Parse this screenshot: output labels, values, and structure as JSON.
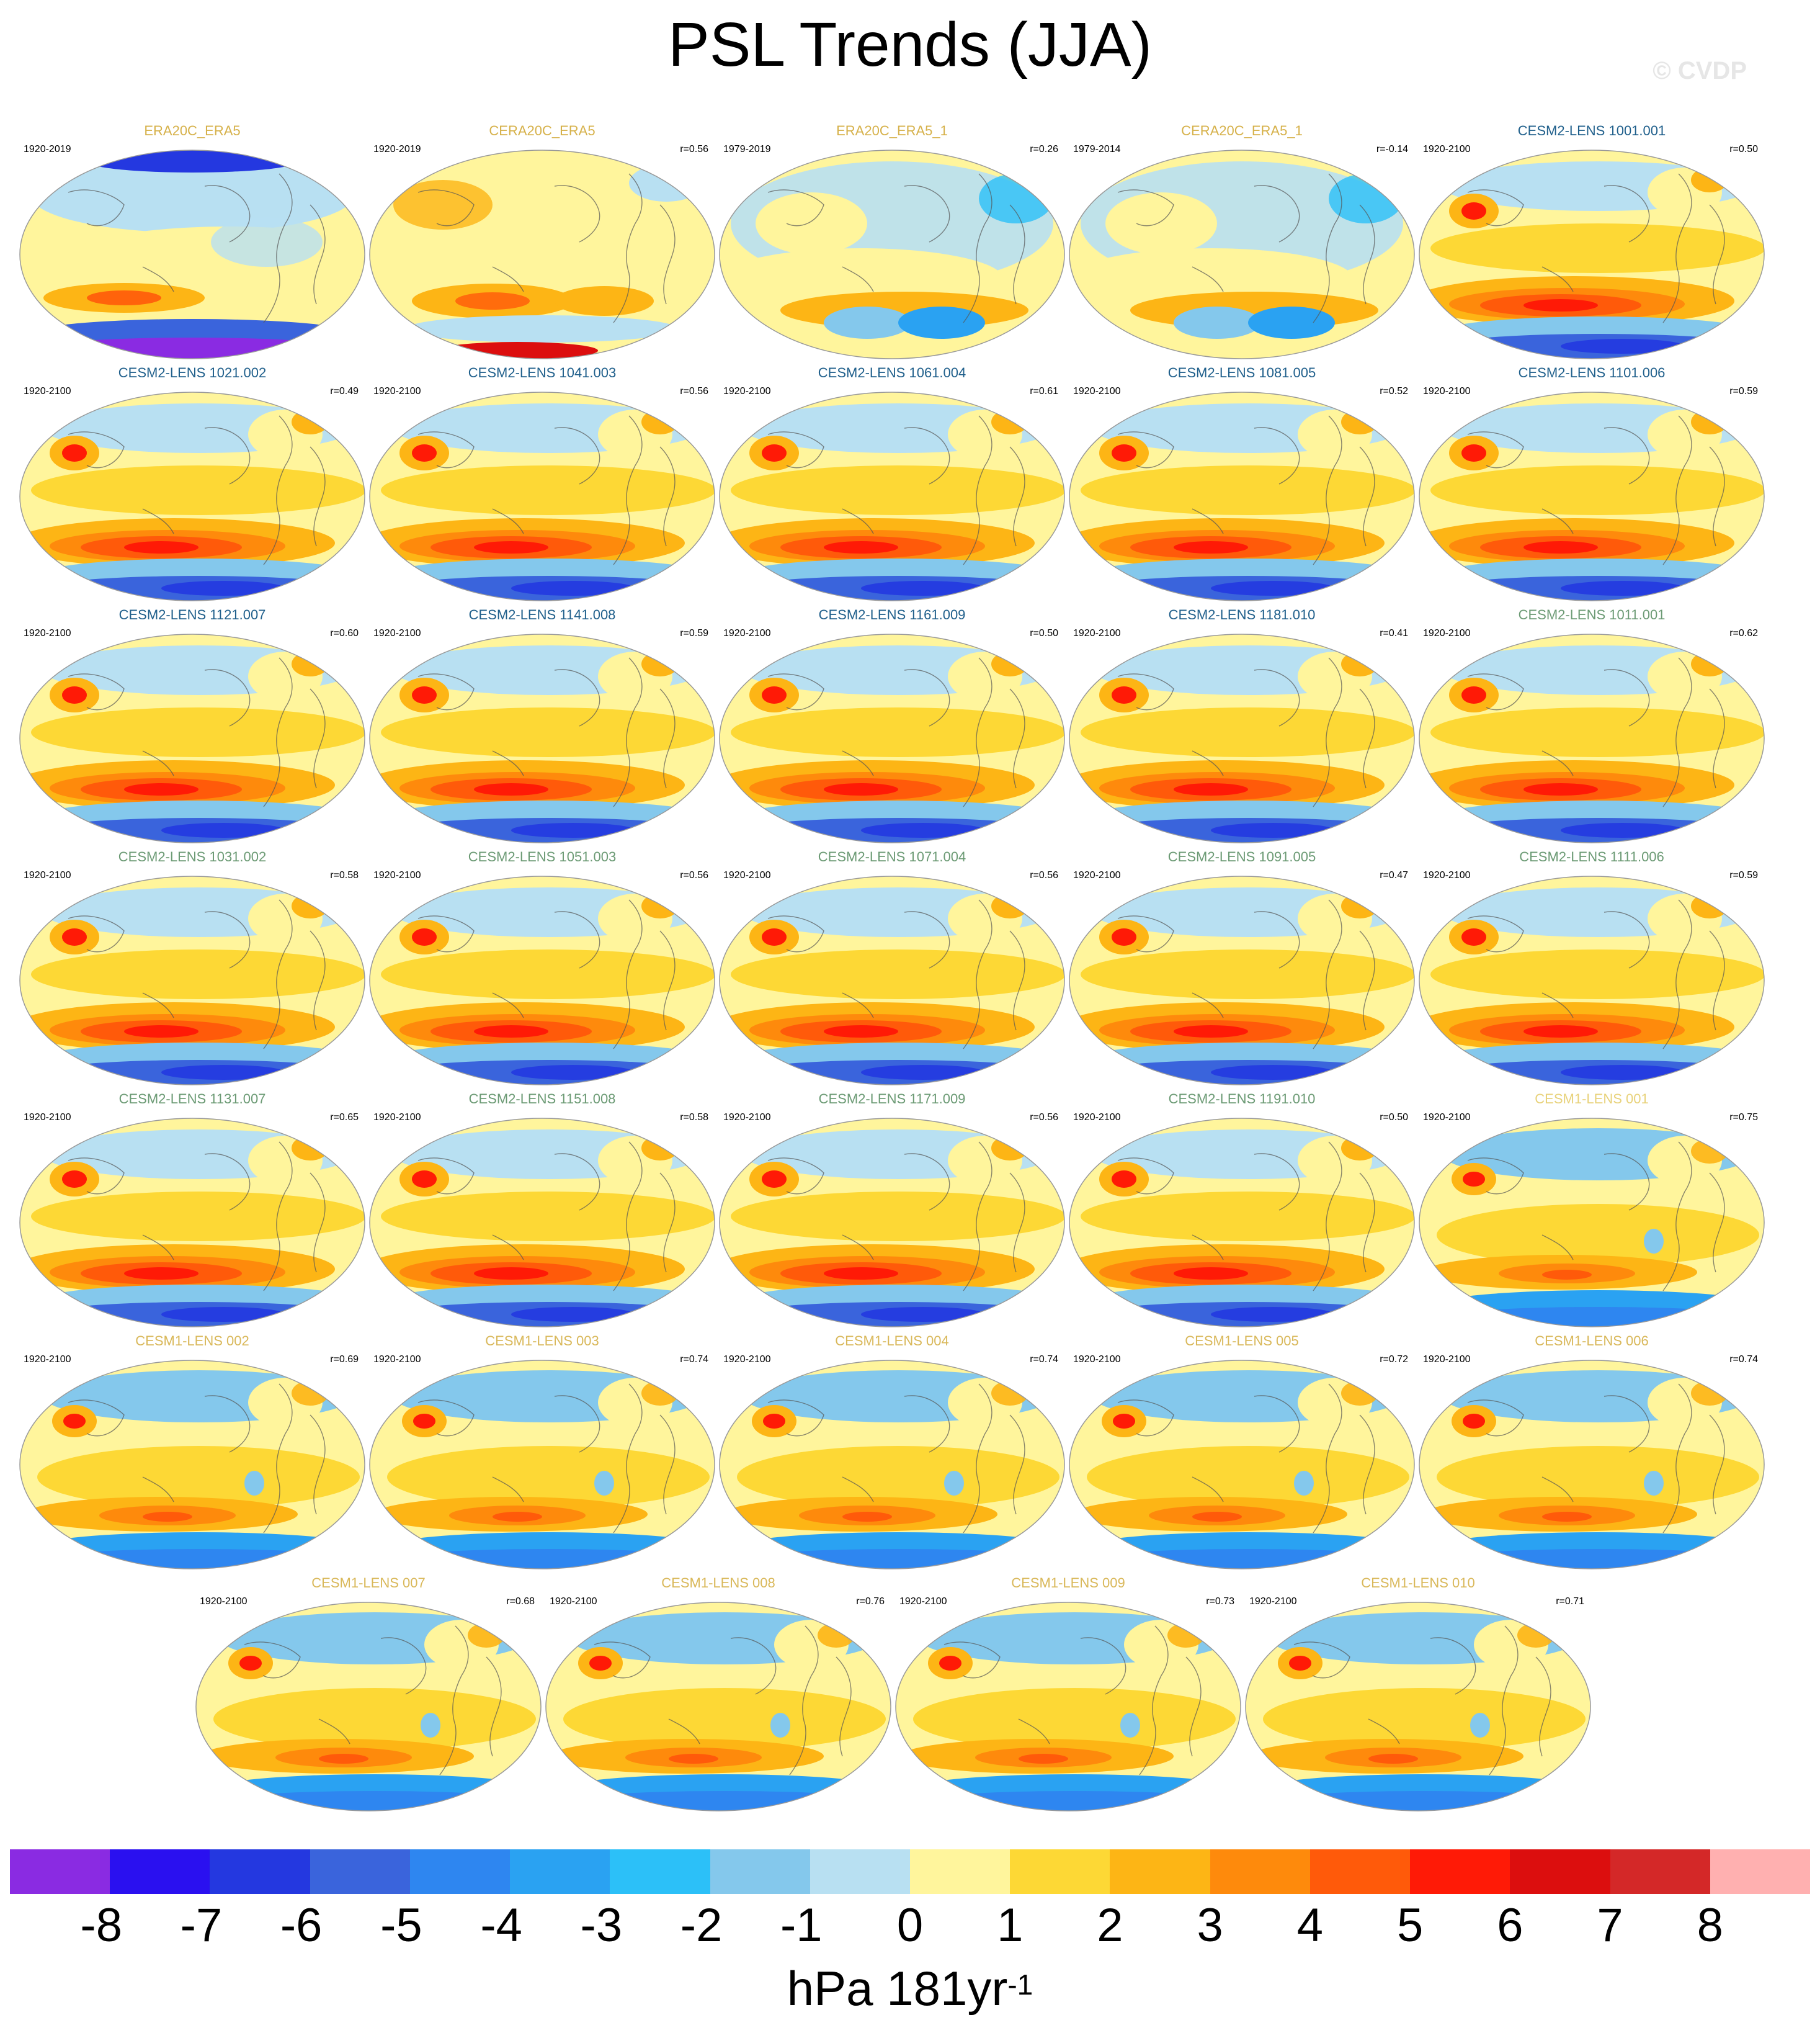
{
  "title": "PSL Trends (JJA)",
  "copyright": "© CVDP",
  "chart_data": {
    "type": "map-panel-grid",
    "variable": "PSL",
    "season": "JJA",
    "panels": [
      {
        "name": "ERA20C_ERA5",
        "period": "1920-2019",
        "r": "",
        "color": "#d6b14a",
        "style": 0
      },
      {
        "name": "CERA20C_ERA5",
        "period": "1920-2019",
        "r": "r=0.56",
        "color": "#d6b14a",
        "style": 1
      },
      {
        "name": "ERA20C_ERA5_1",
        "period": "1979-2019",
        "r": "r=0.26",
        "color": "#d6b14a",
        "style": 2
      },
      {
        "name": "CERA20C_ERA5_1",
        "period": "1979-2014",
        "r": "r=-0.14",
        "color": "#d6b14a",
        "style": 2
      },
      {
        "name": "CESM2-LENS 1001.001",
        "period": "1920-2100",
        "r": "r=0.50",
        "color": "#1f5f8b",
        "style": 3
      },
      {
        "name": "CESM2-LENS 1021.002",
        "period": "1920-2100",
        "r": "r=0.49",
        "color": "#1f5f8b",
        "style": 3
      },
      {
        "name": "CESM2-LENS 1041.003",
        "period": "1920-2100",
        "r": "r=0.56",
        "color": "#1f5f8b",
        "style": 3
      },
      {
        "name": "CESM2-LENS 1061.004",
        "period": "1920-2100",
        "r": "r=0.61",
        "color": "#1f5f8b",
        "style": 3
      },
      {
        "name": "CESM2-LENS 1081.005",
        "period": "1920-2100",
        "r": "r=0.52",
        "color": "#1f5f8b",
        "style": 3
      },
      {
        "name": "CESM2-LENS 1101.006",
        "period": "1920-2100",
        "r": "r=0.59",
        "color": "#1f5f8b",
        "style": 3
      },
      {
        "name": "CESM2-LENS 1121.007",
        "period": "1920-2100",
        "r": "r=0.60",
        "color": "#1f5f8b",
        "style": 3
      },
      {
        "name": "CESM2-LENS 1141.008",
        "period": "1920-2100",
        "r": "r=0.59",
        "color": "#1f5f8b",
        "style": 3
      },
      {
        "name": "CESM2-LENS 1161.009",
        "period": "1920-2100",
        "r": "r=0.50",
        "color": "#1f5f8b",
        "style": 3
      },
      {
        "name": "CESM2-LENS 1181.010",
        "period": "1920-2100",
        "r": "r=0.41",
        "color": "#1f5f8b",
        "style": 3
      },
      {
        "name": "CESM2-LENS 1011.001",
        "period": "1920-2100",
        "r": "r=0.62",
        "color": "#6b9a74",
        "style": 3
      },
      {
        "name": "CESM2-LENS 1031.002",
        "period": "1920-2100",
        "r": "r=0.58",
        "color": "#6b9a74",
        "style": 3
      },
      {
        "name": "CESM2-LENS 1051.003",
        "period": "1920-2100",
        "r": "r=0.56",
        "color": "#6b9a74",
        "style": 3
      },
      {
        "name": "CESM2-LENS 1071.004",
        "period": "1920-2100",
        "r": "r=0.56",
        "color": "#6b9a74",
        "style": 3
      },
      {
        "name": "CESM2-LENS 1091.005",
        "period": "1920-2100",
        "r": "r=0.47",
        "color": "#6b9a74",
        "style": 3
      },
      {
        "name": "CESM2-LENS 1111.006",
        "period": "1920-2100",
        "r": "r=0.59",
        "color": "#6b9a74",
        "style": 3
      },
      {
        "name": "CESM2-LENS 1131.007",
        "period": "1920-2100",
        "r": "r=0.65",
        "color": "#6b9a74",
        "style": 3
      },
      {
        "name": "CESM2-LENS 1151.008",
        "period": "1920-2100",
        "r": "r=0.58",
        "color": "#6b9a74",
        "style": 3
      },
      {
        "name": "CESM2-LENS 1171.009",
        "period": "1920-2100",
        "r": "r=0.56",
        "color": "#6b9a74",
        "style": 3
      },
      {
        "name": "CESM2-LENS 1191.010",
        "period": "1920-2100",
        "r": "r=0.50",
        "color": "#6b9a74",
        "style": 3
      },
      {
        "name": "CESM1-LENS 001",
        "period": "1920-2100",
        "r": "r=0.75",
        "color": "#e8d27a",
        "style": 4
      },
      {
        "name": "CESM1-LENS 002",
        "period": "1920-2100",
        "r": "r=0.69",
        "color": "#d9b85a",
        "style": 4
      },
      {
        "name": "CESM1-LENS 003",
        "period": "1920-2100",
        "r": "r=0.74",
        "color": "#d9b85a",
        "style": 4
      },
      {
        "name": "CESM1-LENS 004",
        "period": "1920-2100",
        "r": "r=0.74",
        "color": "#d9b85a",
        "style": 4
      },
      {
        "name": "CESM1-LENS 005",
        "period": "1920-2100",
        "r": "r=0.72",
        "color": "#d9b85a",
        "style": 4
      },
      {
        "name": "CESM1-LENS 006",
        "period": "1920-2100",
        "r": "r=0.74",
        "color": "#d9b85a",
        "style": 4
      },
      {
        "name": "CESM1-LENS 007",
        "period": "1920-2100",
        "r": "r=0.68",
        "color": "#d9b85a",
        "style": 4
      },
      {
        "name": "CESM1-LENS 008",
        "period": "1920-2100",
        "r": "r=0.76",
        "color": "#d9b85a",
        "style": 4
      },
      {
        "name": "CESM1-LENS 009",
        "period": "1920-2100",
        "r": "r=0.73",
        "color": "#d9b85a",
        "style": 4
      },
      {
        "name": "CESM1-LENS 010",
        "period": "1920-2100",
        "r": "r=0.71",
        "color": "#d9b85a",
        "style": 4
      }
    ],
    "colorbar": {
      "colors": [
        "#8a2be2",
        "#2a10f0",
        "#2438e0",
        "#3a64dc",
        "#2e86f0",
        "#2aa2f2",
        "#2cc0f8",
        "#84c8ec",
        "#b8e0f2",
        "#fff59c",
        "#fdd835",
        "#fdb515",
        "#fe8a0c",
        "#ff5a0a",
        "#ff1a06",
        "#dc0e0e",
        "#d42828",
        "#ffb0b0"
      ],
      "ticks": [
        "-8",
        "-7",
        "-6",
        "-5",
        "-4",
        "-3",
        "-2",
        "-1",
        "0",
        "1",
        "2",
        "3",
        "4",
        "5",
        "6",
        "7",
        "8"
      ],
      "units": "hPa 181yr",
      "units_sup": "-1"
    }
  }
}
